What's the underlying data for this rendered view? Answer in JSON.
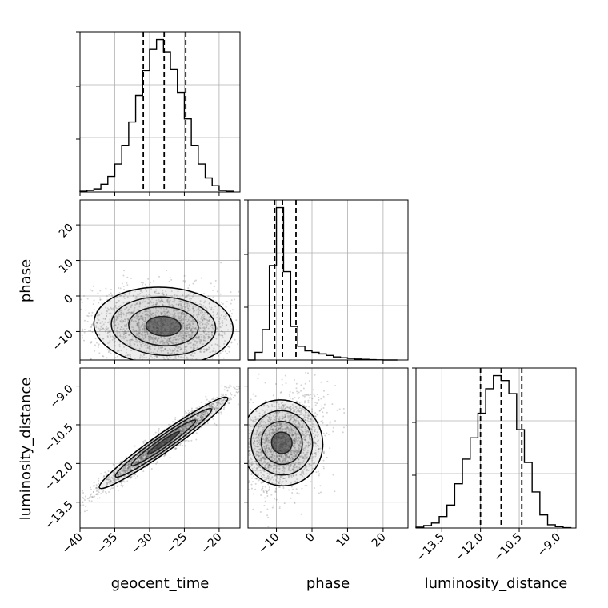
{
  "chart_data": {
    "type": "corner",
    "parameters": [
      "geocent_time",
      "phase",
      "luminosity_distance"
    ],
    "axis_labels": {
      "geocent_time": "geocent_time",
      "phase": "phase",
      "luminosity_distance": "luminosity_distance"
    },
    "ranges": {
      "geocent_time": [
        -40,
        -17
      ],
      "phase": [
        -18,
        27
      ],
      "luminosity_distance": [
        -14.5,
        -8.3
      ]
    },
    "ticks": {
      "geocent_time": [
        -40,
        -35,
        -30,
        -25,
        -20
      ],
      "phase": [
        -10,
        0,
        10,
        20
      ],
      "luminosity_distance": [
        -13.5,
        -12.0,
        -10.5,
        -9.0
      ]
    },
    "tick_labels": {
      "geocent_time": [
        "−40",
        "−35",
        "−30",
        "−25",
        "−20"
      ],
      "phase": [
        "−10",
        "0",
        "10",
        "20"
      ],
      "luminosity_distance": [
        "−13.5",
        "−12.0",
        "−10.5",
        "−9.0"
      ]
    },
    "quantiles": {
      "geocent_time": [
        -30.9,
        -27.9,
        -24.8
      ],
      "phase": [
        -10.5,
        -8.3,
        -4.5
      ],
      "luminosity_distance": [
        -12.0,
        -11.2,
        -10.4
      ]
    },
    "histograms": {
      "geocent_time": {
        "edges": [
          -40,
          -39,
          -38,
          -37,
          -36,
          -35,
          -34,
          -33,
          -32,
          -31,
          -30,
          -29,
          -28,
          -27,
          -26,
          -25,
          -24,
          -23,
          -22,
          -21,
          -20,
          -19,
          -18
        ],
        "counts": [
          0.005,
          0.01,
          0.02,
          0.05,
          0.1,
          0.18,
          0.3,
          0.45,
          0.62,
          0.78,
          0.92,
          0.98,
          0.9,
          0.79,
          0.64,
          0.47,
          0.3,
          0.18,
          0.09,
          0.04,
          0.01,
          0.005
        ]
      },
      "phase": {
        "edges": [
          -18,
          -16,
          -14,
          -12,
          -10,
          -8,
          -6,
          -4,
          -2,
          0,
          2,
          4,
          6,
          8,
          10,
          12,
          14,
          16,
          18,
          20,
          22,
          24
        ],
        "counts": [
          0.0,
          0.05,
          0.2,
          0.62,
          1.0,
          0.58,
          0.22,
          0.09,
          0.06,
          0.05,
          0.04,
          0.03,
          0.02,
          0.015,
          0.01,
          0.006,
          0.004,
          0.002,
          0.001,
          0.0,
          0.0
        ]
      },
      "luminosity_distance": {
        "edges": [
          -14.5,
          -14.2,
          -13.9,
          -13.6,
          -13.3,
          -13.0,
          -12.7,
          -12.4,
          -12.1,
          -11.8,
          -11.5,
          -11.2,
          -10.9,
          -10.6,
          -10.3,
          -10.0,
          -9.7,
          -9.4,
          -9.1,
          -8.8,
          -8.5
        ],
        "counts": [
          0.005,
          0.015,
          0.03,
          0.07,
          0.14,
          0.27,
          0.42,
          0.55,
          0.7,
          0.85,
          0.93,
          0.9,
          0.82,
          0.6,
          0.4,
          0.22,
          0.08,
          0.02,
          0.008,
          0.002
        ]
      }
    },
    "correlations": {
      "phase_vs_geocent_time": {
        "mean_x": -28.0,
        "mean_y": -8.5,
        "sx": 5.0,
        "sy": 5.5,
        "rho": -0.1
      },
      "luminosity_distance_vs_geocent_time": {
        "mean_x": -28.0,
        "mean_y": -11.2,
        "sx": 4.6,
        "sy": 0.9,
        "rho": 0.97
      },
      "luminosity_distance_vs_phase": {
        "mean_x": -8.5,
        "mean_y": -11.2,
        "sx": 5.5,
        "sy": 0.9,
        "rho": 0.25
      }
    },
    "grid": true,
    "colors": {
      "line": "#000000",
      "grid": "#b0b0b0",
      "points": "#555555"
    }
  }
}
